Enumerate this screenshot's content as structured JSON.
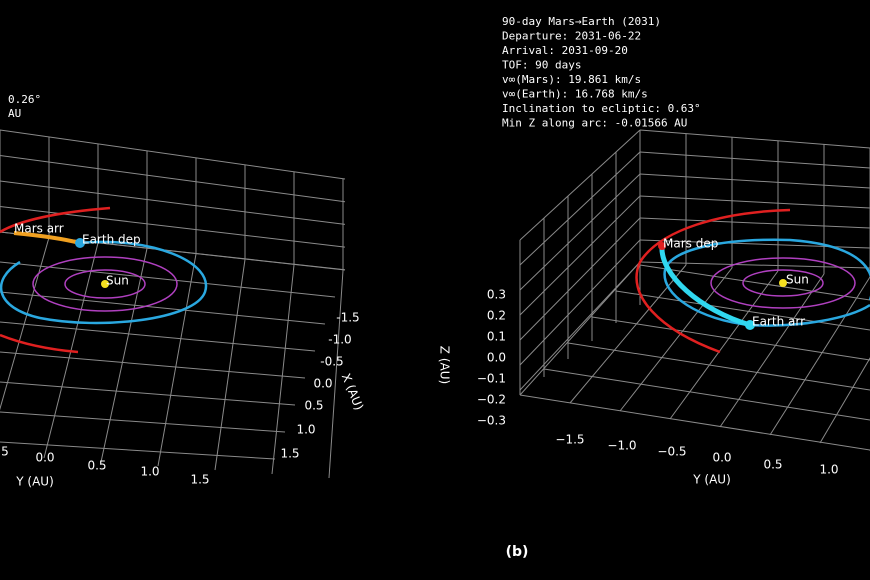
{
  "caption": "(b)",
  "panels": [
    {
      "info": [
        "0.26°",
        "AU"
      ],
      "labels": [
        "Mars arr",
        "Earth dep",
        "Sun"
      ],
      "x_label": "X (AU)",
      "x_ticks": [
        "-1.5",
        "-1.0",
        "-0.5",
        "0.0",
        "0.5",
        "1.0",
        "1.5"
      ],
      "y_label": "Y (AU)",
      "y_ticks": [
        "5",
        "0.0",
        "0.5",
        "1.0",
        "1.5"
      ]
    },
    {
      "info": [
        "90-day Mars→Earth (2031)",
        "Departure: 2031-06-22",
        "Arrival:   2031-09-20",
        "TOF: 90 days",
        "v∞(Mars):  19.861 km/s",
        "v∞(Earth):  16.768 km/s",
        "Inclination to ecliptic:  0.63°",
        "Min Z along arc: -0.01566 AU"
      ],
      "labels": [
        "Mars dep",
        "Sun",
        "Earth arr"
      ],
      "z_label": "Z (AU)",
      "z_ticks": [
        "0.3",
        "0.2",
        "0.1",
        "0.0",
        "−0.1",
        "−0.2",
        "−0.3"
      ],
      "y_label": "Y (AU)",
      "y_ticks": [
        "−1.5",
        "−1.0",
        "−0.5",
        "0.0",
        "0.5",
        "1.0"
      ]
    }
  ]
}
